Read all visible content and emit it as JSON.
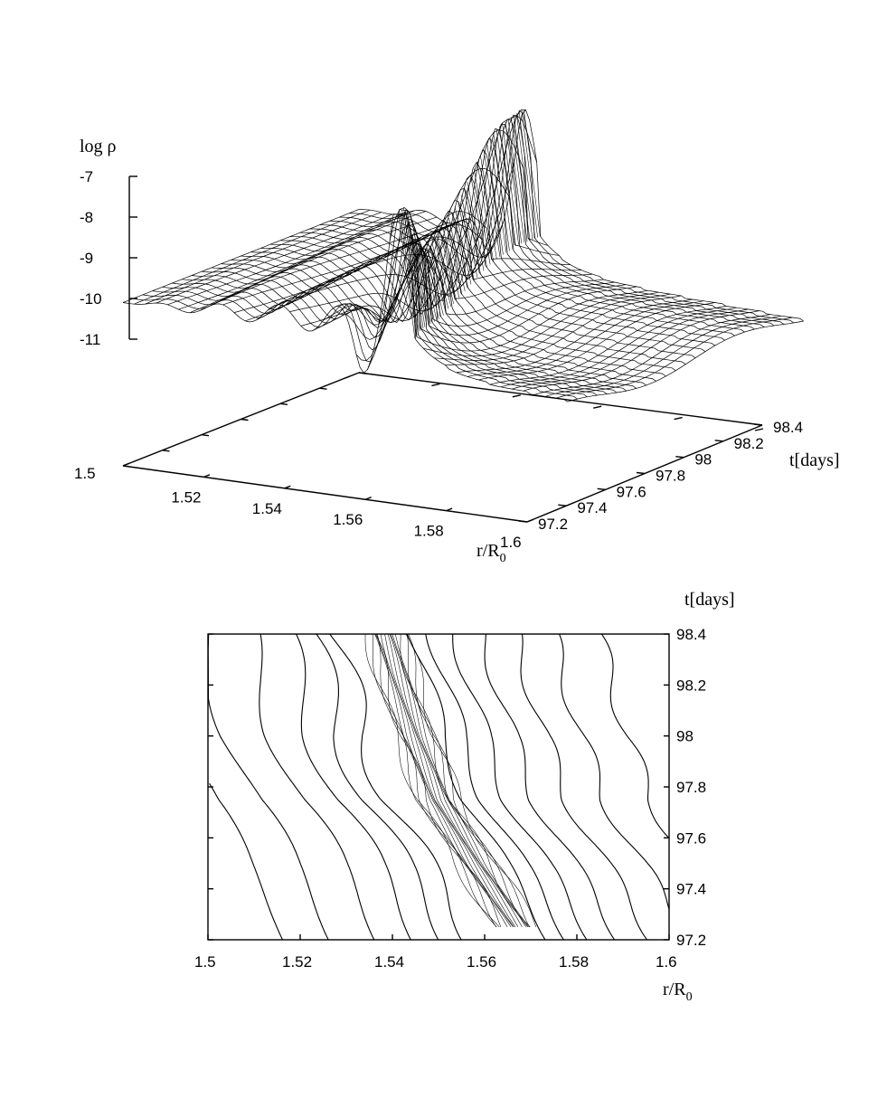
{
  "chart_data": [
    {
      "type": "surface",
      "zlabel": "log ρ",
      "xlabel": "r/R",
      "xlabel_sub": "0",
      "ylabel": "t[days]",
      "x_range": [
        1.5,
        1.6
      ],
      "y_range": [
        97.2,
        98.4
      ],
      "z_range": [
        -11,
        -7
      ],
      "x_ticks": [
        "1.5",
        "1.52",
        "1.54",
        "1.56",
        "1.58",
        "1.6"
      ],
      "y_ticks": [
        "97.2",
        "97.4",
        "97.6",
        "97.8",
        "98",
        "98.2",
        "98.4"
      ],
      "z_ticks": [
        "-7",
        "-8",
        "-9",
        "-10",
        "-11"
      ],
      "surface_profile": {
        "r": [
          1.5,
          1.51,
          1.52,
          1.53,
          1.535,
          1.54,
          1.545,
          1.548,
          1.552,
          1.556,
          1.56,
          1.57,
          1.58,
          1.59,
          1.6
        ],
        "log_rho": [
          -10.1,
          -9.9,
          -9.7,
          -9.6,
          -9.7,
          -9.3,
          -8.2,
          -7.4,
          -8.3,
          -10.5,
          -10.6,
          -10.7,
          -10.8,
          -10.9,
          -11.0
        ]
      }
    },
    {
      "type": "contour",
      "xlabel": "r/R",
      "xlabel_sub": "0",
      "ylabel": "t[days]",
      "x_range": [
        1.5,
        1.6
      ],
      "y_range": [
        97.2,
        98.4
      ],
      "x_ticks": [
        "1.5",
        "1.52",
        "1.54",
        "1.56",
        "1.58",
        "1.6"
      ],
      "y_ticks": [
        "97.2",
        "97.4",
        "97.6",
        "97.8",
        "98",
        "98.2",
        "98.4"
      ],
      "shock_front": {
        "t": [
          97.25,
          97.5,
          97.75,
          98.0,
          98.25,
          98.38
        ],
        "r": [
          1.567,
          1.558,
          1.55,
          1.545,
          1.541,
          1.539
        ]
      }
    }
  ]
}
